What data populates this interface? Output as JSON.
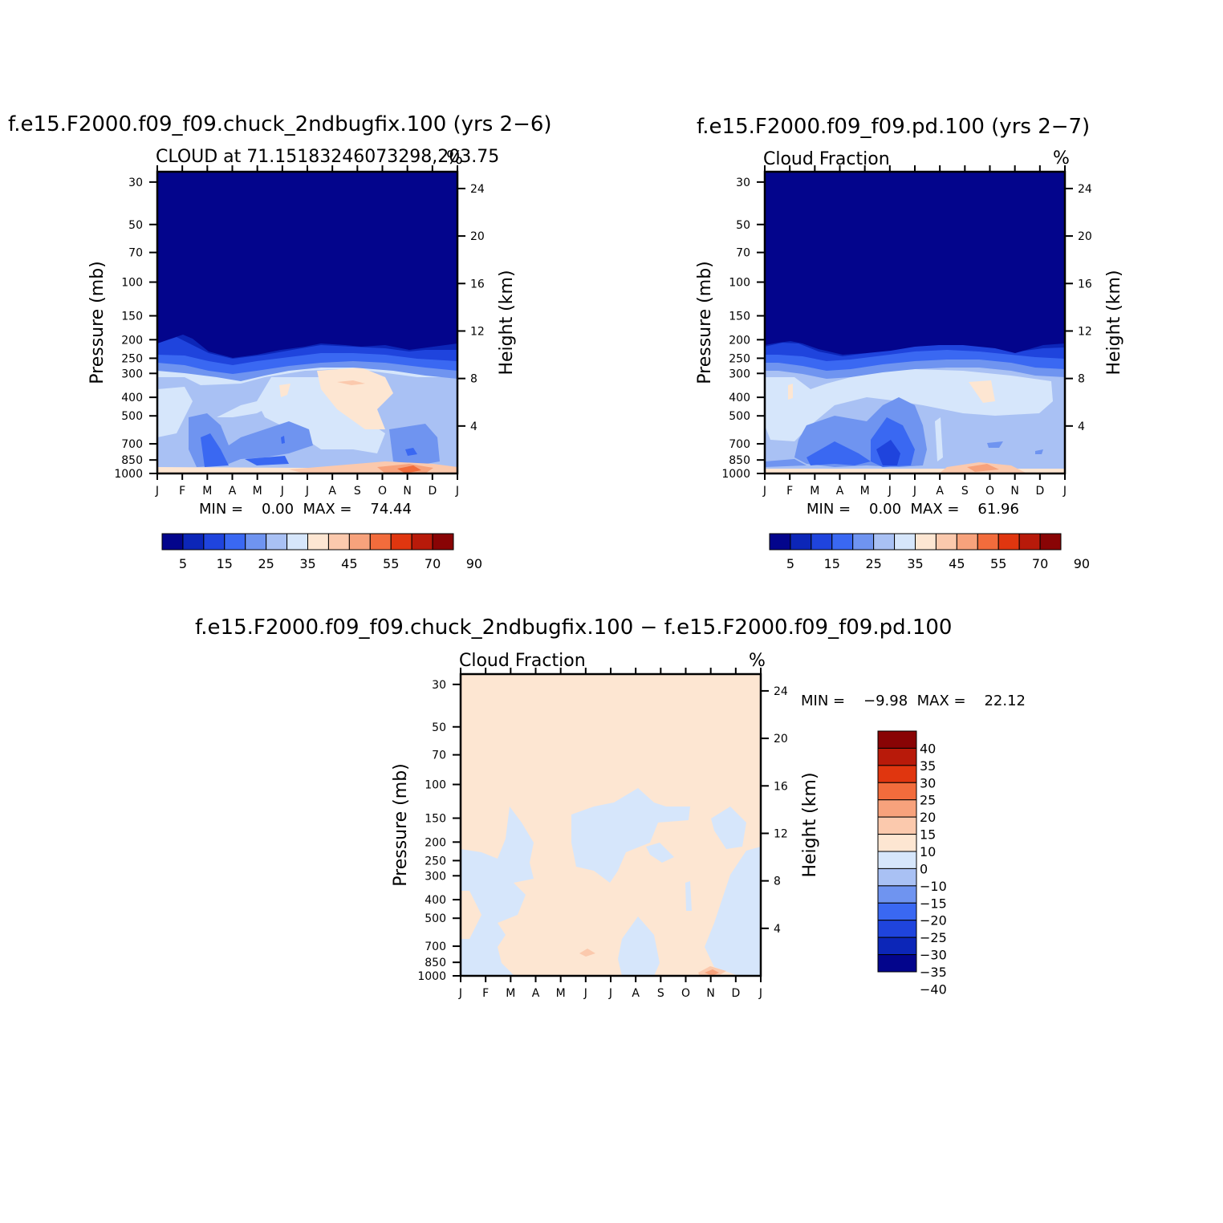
{
  "colors": {
    "abs_scale": [
      "#03058c",
      "#0c26b8",
      "#1f44dd",
      "#3a68f2",
      "#6f94f0",
      "#a9c1f4",
      "#d6e6fb",
      "#fde6d2",
      "#fbc9ad",
      "#f7a27c",
      "#f26c3c",
      "#e0360f",
      "#b81a0a",
      "#890405"
    ],
    "diff_scale": [
      "#03058c",
      "#0c26b8",
      "#1f44dd",
      "#3a68f2",
      "#6f94f0",
      "#a9c1f4",
      "#d6e6fb",
      "#fde6d2",
      "#fbc9ad",
      "#f7a27c",
      "#f26c3c",
      "#e0360f",
      "#b81a0a",
      "#890405"
    ]
  },
  "chart_data": [
    {
      "type": "heatmap",
      "id": "case1",
      "title": "f.e15.F2000.f09_f09.chuck_2ndbugfix.100 (yrs 2−6)",
      "subtitle_left": "CLOUD at 71.15183246073298,203.75",
      "units": "%",
      "ylabel": "Pressure (mb)",
      "ylabel_right": "Height (km)",
      "x_ticks": [
        "J",
        "F",
        "M",
        "A",
        "M",
        "J",
        "J",
        "A",
        "S",
        "O",
        "N",
        "D",
        "J"
      ],
      "pressure_ticks": [
        30,
        50,
        70,
        100,
        150,
        200,
        250,
        300,
        400,
        500,
        700,
        850,
        1000
      ],
      "height_ticks": [
        24,
        20,
        16,
        12,
        8,
        4
      ],
      "stats_text": "MIN =    0.00  MAX =    74.44",
      "colorbar_labels": [
        "5",
        "15",
        "25",
        "35",
        "45",
        "55",
        "70",
        "90"
      ],
      "contour_levels": [
        5,
        10,
        15,
        20,
        25,
        30,
        35,
        40,
        45,
        50,
        55,
        60,
        70,
        80,
        90
      ]
    },
    {
      "type": "heatmap",
      "id": "case2",
      "title": "f.e15.F2000.f09_f09.pd.100 (yrs 2−7)",
      "subtitle_left": "Cloud Fraction",
      "units": "%",
      "ylabel": "Pressure (mb)",
      "ylabel_right": "Height (km)",
      "x_ticks": [
        "J",
        "F",
        "M",
        "A",
        "M",
        "J",
        "J",
        "A",
        "S",
        "O",
        "N",
        "D",
        "J"
      ],
      "pressure_ticks": [
        30,
        50,
        70,
        100,
        150,
        200,
        250,
        300,
        400,
        500,
        700,
        850,
        1000
      ],
      "height_ticks": [
        24,
        20,
        16,
        12,
        8,
        4
      ],
      "stats_text": "MIN =    0.00  MAX =    61.96",
      "colorbar_labels": [
        "5",
        "15",
        "25",
        "35",
        "45",
        "55",
        "70",
        "90"
      ],
      "contour_levels": [
        5,
        10,
        15,
        20,
        25,
        30,
        35,
        40,
        45,
        50,
        55,
        60,
        70,
        80,
        90
      ]
    },
    {
      "type": "heatmap",
      "id": "diff",
      "title": "f.e15.F2000.f09_f09.chuck_2ndbugfix.100 − f.e15.F2000.f09_f09.pd.100",
      "subtitle_left": "Cloud Fraction",
      "units": "%",
      "ylabel": "Pressure (mb)",
      "ylabel_right": "Height (km)",
      "x_ticks": [
        "J",
        "F",
        "M",
        "A",
        "M",
        "J",
        "J",
        "A",
        "S",
        "O",
        "N",
        "D",
        "J"
      ],
      "pressure_ticks": [
        30,
        50,
        70,
        100,
        150,
        200,
        250,
        300,
        400,
        500,
        700,
        850,
        1000
      ],
      "height_ticks": [
        24,
        20,
        16,
        12,
        8,
        4
      ],
      "stats_text": "MIN =    −9.98  MAX =    22.12",
      "colorbar_labels": [
        "40",
        "35",
        "30",
        "25",
        "20",
        "15",
        "10",
        "0",
        "−10",
        "−15",
        "−20",
        "−25",
        "−30",
        "−35",
        "−40"
      ],
      "contour_levels": [
        -40,
        -35,
        -30,
        -25,
        -20,
        -15,
        -10,
        0,
        10,
        15,
        20,
        25,
        30,
        35,
        40
      ]
    }
  ]
}
